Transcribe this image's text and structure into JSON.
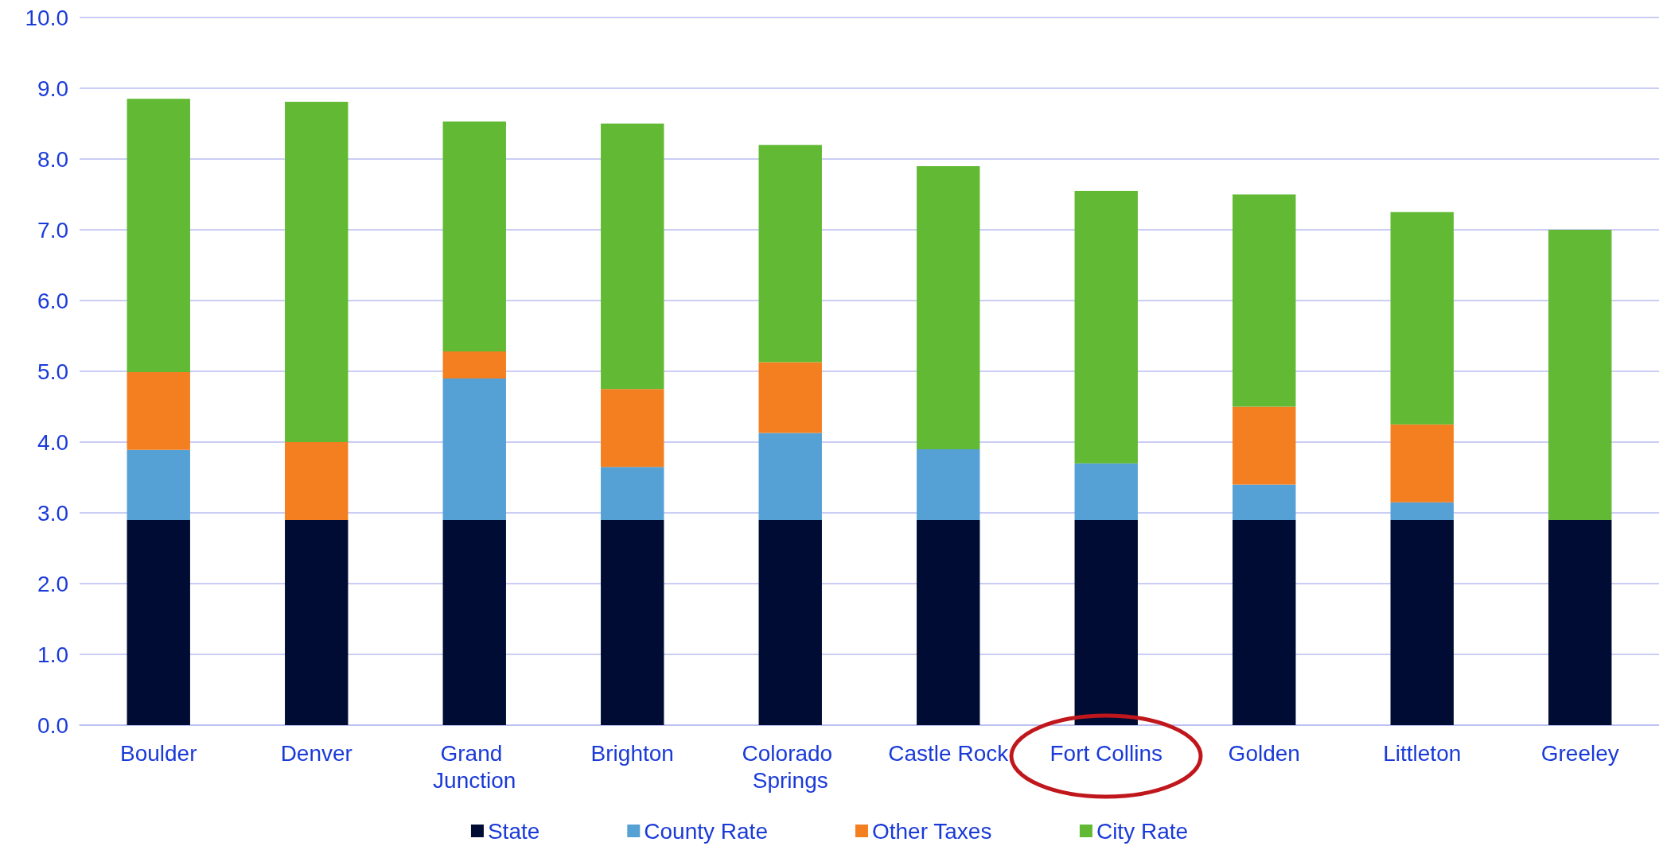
{
  "chart_data": {
    "type": "bar",
    "stacked": true,
    "categories": [
      "Boulder",
      "Denver",
      "Grand Junction",
      "Brighton",
      "Colorado Springs",
      "Castle Rock",
      "Fort Collins",
      "Golden",
      "Littleton",
      "Greeley"
    ],
    "series": [
      {
        "name": "State",
        "color": "#000c33",
        "values": [
          2.9,
          2.9,
          2.9,
          2.9,
          2.9,
          2.9,
          2.9,
          2.9,
          2.9,
          2.9
        ]
      },
      {
        "name": "County Rate",
        "color": "#55a0d5",
        "values": [
          0.99,
          0,
          2.0,
          0.75,
          1.23,
          1.0,
          0.8,
          0.5,
          0.25,
          0
        ]
      },
      {
        "name": "Other Taxes",
        "color": "#f47f20",
        "values": [
          1.1,
          1.1,
          0.38,
          1.1,
          1.0,
          0,
          0,
          1.1,
          1.1,
          0
        ]
      },
      {
        "name": "City Rate",
        "color": "#62b933",
        "values": [
          3.86,
          4.81,
          3.25,
          3.75,
          3.07,
          4.0,
          3.85,
          3.0,
          3.0,
          4.1
        ]
      }
    ],
    "ylim": [
      0,
      10
    ],
    "yticks": [
      {
        "value": 0,
        "label": "0.0"
      },
      {
        "value": 1,
        "label": "1.0"
      },
      {
        "value": 2,
        "label": "2.0"
      },
      {
        "value": 3,
        "label": "3.0"
      },
      {
        "value": 4,
        "label": "4.0"
      },
      {
        "value": 5,
        "label": "5.0"
      },
      {
        "value": 6,
        "label": "6.0"
      },
      {
        "value": 7,
        "label": "7.0"
      },
      {
        "value": 8,
        "label": "8.0"
      },
      {
        "value": 9,
        "label": "9.0"
      },
      {
        "value": 10,
        "label": "10.0"
      }
    ],
    "grid": "y",
    "legend": "bottom"
  }
}
